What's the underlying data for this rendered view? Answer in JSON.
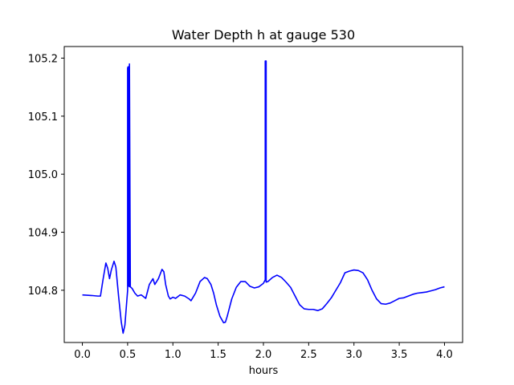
{
  "chart_data": {
    "type": "line",
    "title": "Water Depth h at gauge 530",
    "xlabel": "hours",
    "ylabel": "",
    "xlim": [
      -0.2,
      4.2
    ],
    "ylim": [
      104.71,
      105.22
    ],
    "xticks": [
      0.0,
      0.5,
      1.0,
      1.5,
      2.0,
      2.5,
      3.0,
      3.5,
      4.0
    ],
    "xtick_labels": [
      "0.0",
      "0.5",
      "1.0",
      "1.5",
      "2.0",
      "2.5",
      "3.0",
      "3.5",
      "4.0"
    ],
    "yticks": [
      104.8,
      104.9,
      105.0,
      105.1,
      105.2
    ],
    "ytick_labels": [
      "104.8",
      "104.9",
      "105.0",
      "105.1",
      "105.2"
    ],
    "grid": false,
    "series": [
      {
        "color": "#0000ff",
        "x": [
          0.0,
          0.1,
          0.17,
          0.2,
          0.23,
          0.26,
          0.28,
          0.3,
          0.32,
          0.35,
          0.37,
          0.4,
          0.43,
          0.45,
          0.47,
          0.49,
          0.5,
          0.5,
          0.505,
          0.51,
          0.51,
          0.52,
          0.52,
          0.53,
          0.55,
          0.58,
          0.61,
          0.65,
          0.7,
          0.74,
          0.78,
          0.8,
          0.84,
          0.88,
          0.9,
          0.92,
          0.95,
          0.97,
          1.0,
          1.03,
          1.08,
          1.13,
          1.18,
          1.2,
          1.25,
          1.3,
          1.35,
          1.38,
          1.42,
          1.45,
          1.48,
          1.52,
          1.56,
          1.58,
          1.6,
          1.65,
          1.7,
          1.75,
          1.8,
          1.85,
          1.9,
          1.95,
          2.0,
          2.02,
          2.02,
          2.025,
          2.03,
          2.03,
          2.05,
          2.1,
          2.15,
          2.2,
          2.25,
          2.3,
          2.35,
          2.4,
          2.45,
          2.5,
          2.55,
          2.6,
          2.65,
          2.7,
          2.75,
          2.8,
          2.85,
          2.9,
          2.95,
          3.0,
          3.05,
          3.1,
          3.15,
          3.2,
          3.25,
          3.3,
          3.35,
          3.4,
          3.45,
          3.5,
          3.55,
          3.6,
          3.65,
          3.7,
          3.75,
          3.8,
          3.85,
          3.9,
          3.95,
          4.0
        ],
        "y": [
          104.792,
          104.791,
          104.79,
          104.79,
          104.82,
          104.847,
          104.838,
          104.82,
          104.835,
          104.85,
          104.84,
          104.79,
          104.745,
          104.726,
          104.74,
          104.78,
          104.8,
          105.183,
          105.185,
          105.185,
          104.808,
          104.806,
          105.19,
          104.806,
          104.803,
          104.795,
          104.79,
          104.792,
          104.786,
          104.81,
          104.82,
          104.81,
          104.82,
          104.836,
          104.832,
          104.81,
          104.79,
          104.785,
          104.788,
          104.786,
          104.792,
          104.79,
          104.785,
          104.782,
          104.795,
          104.815,
          104.822,
          104.82,
          104.81,
          104.795,
          104.775,
          104.755,
          104.744,
          104.745,
          104.755,
          104.785,
          104.805,
          104.815,
          104.815,
          104.807,
          104.804,
          104.806,
          104.812,
          104.818,
          105.195,
          105.195,
          105.195,
          104.814,
          104.815,
          104.822,
          104.826,
          104.822,
          104.814,
          104.805,
          104.79,
          104.775,
          104.768,
          104.767,
          104.767,
          104.765,
          104.768,
          104.777,
          104.787,
          104.8,
          104.813,
          104.83,
          104.833,
          104.835,
          104.834,
          104.83,
          104.818,
          104.8,
          104.785,
          104.777,
          104.776,
          104.778,
          104.782,
          104.786,
          104.787,
          104.79,
          104.793,
          104.795,
          104.796,
          104.797,
          104.799,
          104.801,
          104.804,
          104.806
        ]
      }
    ]
  }
}
